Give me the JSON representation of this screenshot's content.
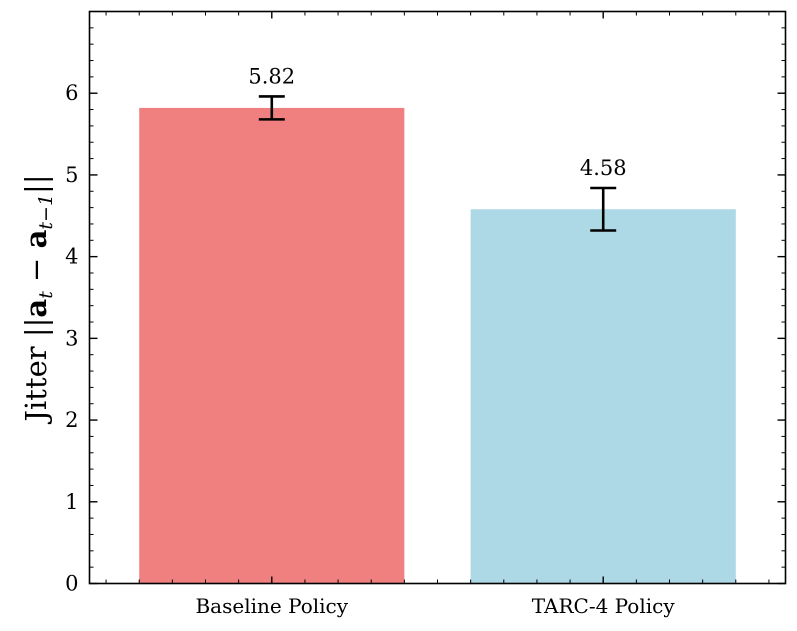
{
  "chart_data": {
    "type": "bar",
    "categories": [
      "Baseline Policy",
      "TARC-4 Policy"
    ],
    "values": [
      5.82,
      4.58
    ],
    "errors": [
      0.14,
      0.26
    ],
    "data_labels": [
      "5.82",
      "4.58"
    ],
    "colors": [
      "#f08080",
      "#add8e6"
    ],
    "title": "",
    "xlabel": "",
    "ylabel_parts": {
      "prefix": "Jitter ||",
      "a1": "a",
      "sub1": "t",
      "minus": " − ",
      "a2": "a",
      "sub2": "t−1",
      "suffix": "||"
    },
    "ylim": [
      0,
      7
    ],
    "yticks": [
      "0",
      "1",
      "2",
      "3",
      "4",
      "5",
      "6"
    ],
    "grid": false,
    "error_bar_color": "#000000"
  }
}
